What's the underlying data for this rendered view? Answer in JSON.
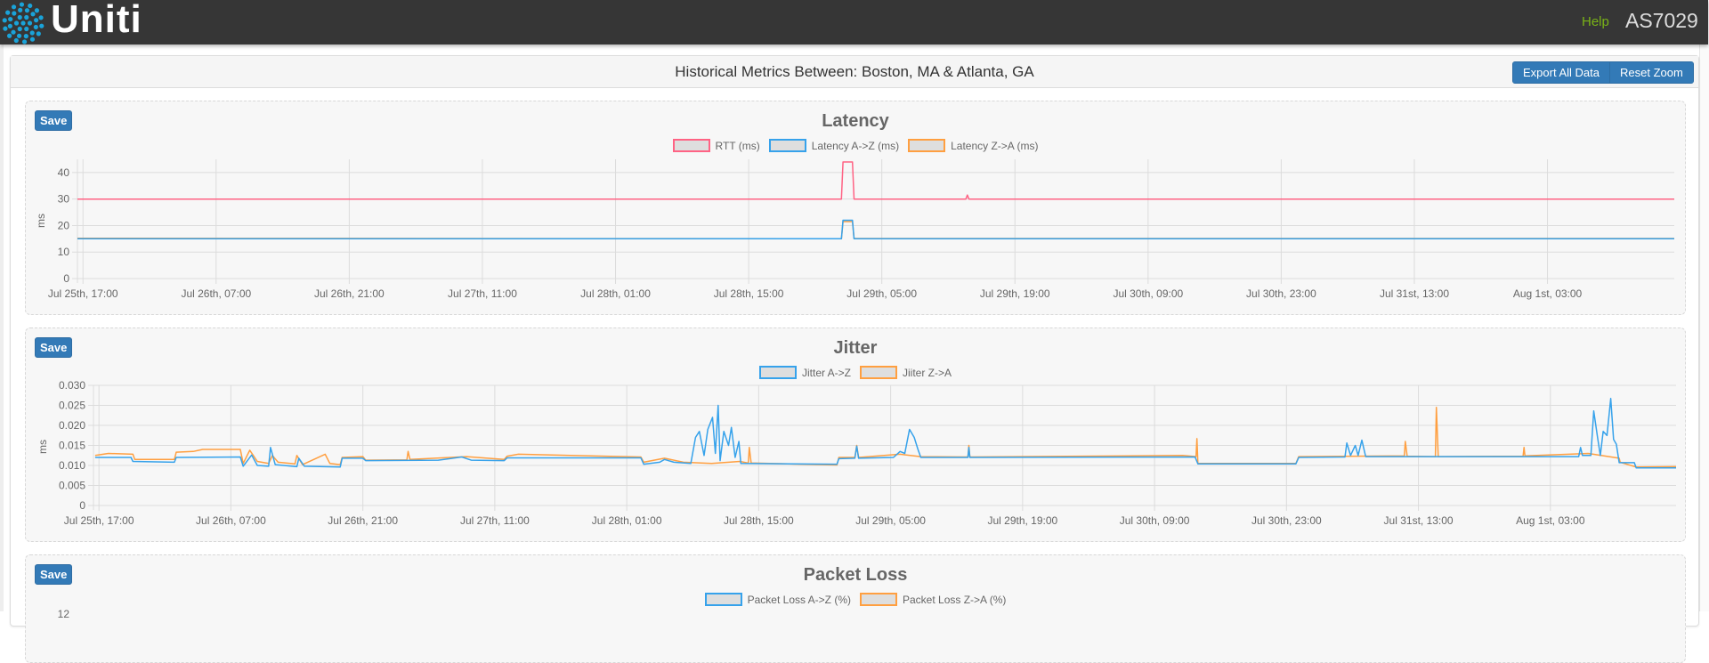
{
  "header": {
    "brand": "Uniti",
    "help": "Help",
    "user": "AS7029",
    "logo_color": "#1aa3d9",
    "help_color": "#7ab317"
  },
  "panel": {
    "title": "Historical Metrics Between: Boston, MA & Atlanta, GA",
    "export_label": "Export All Data",
    "reset_zoom_label": "Reset Zoom"
  },
  "charts": [
    {
      "save_label": "Save",
      "title": "Latency"
    },
    {
      "save_label": "Save",
      "title": "Jitter"
    },
    {
      "save_label": "Save",
      "title": "Packet Loss"
    }
  ],
  "chart_data": [
    {
      "type": "line",
      "title": "Latency",
      "ylabel": "ms",
      "ylim": [
        0,
        45
      ],
      "xlim": [
        "Jul 25 16:25",
        "Aug 1 16:20"
      ],
      "grid": true,
      "legend_position": "top",
      "yticks": [
        "0",
        "10",
        "20",
        "30",
        "40"
      ],
      "xticks": [
        {
          "t": "Jul 25 17:00",
          "label": "Jul 25th, 17:00"
        },
        {
          "t": "Jul 26 07:00",
          "label": "Jul 26th, 07:00"
        },
        {
          "t": "Jul 26 21:00",
          "label": "Jul 26th, 21:00"
        },
        {
          "t": "Jul 27 11:00",
          "label": "Jul 27th, 11:00"
        },
        {
          "t": "Jul 28 01:00",
          "label": "Jul 28th, 01:00"
        },
        {
          "t": "Jul 28 15:00",
          "label": "Jul 28th, 15:00"
        },
        {
          "t": "Jul 29 05:00",
          "label": "Jul 29th, 05:00"
        },
        {
          "t": "Jul 29 19:00",
          "label": "Jul 29th, 19:00"
        },
        {
          "t": "Jul 30 09:00",
          "label": "Jul 30th, 09:00"
        },
        {
          "t": "Jul 30 23:00",
          "label": "Jul 30th, 23:00"
        },
        {
          "t": "Jul 31 13:00",
          "label": "Jul 31st, 13:00"
        },
        {
          "t": "Aug 1 03:00",
          "label": "Aug 1st, 03:00"
        }
      ],
      "series": [
        {
          "name": "RTT (ms)",
          "color": "#ff6384",
          "points": [
            [
              "Jul 25 16:25",
              30
            ],
            [
              "Jul 29 00:45",
              30
            ],
            [
              "Jul 29 00:55",
              44
            ],
            [
              "Jul 29 01:55",
              44
            ],
            [
              "Jul 29 02:05",
              30
            ],
            [
              "Jul 29 13:50",
              30
            ],
            [
              "Jul 29 14:00",
              31.5
            ],
            [
              "Jul 29 14:10",
              30
            ],
            [
              "Aug 1 16:20",
              30
            ]
          ]
        },
        {
          "name": "Latency A->Z (ms)",
          "color": "#36a2eb",
          "points": [
            [
              "Jul 25 16:25",
              15
            ],
            [
              "Jul 29 00:45",
              15
            ],
            [
              "Jul 29 00:55",
              22
            ],
            [
              "Jul 29 01:55",
              22
            ],
            [
              "Jul 29 02:05",
              15
            ],
            [
              "Aug 1 16:20",
              15
            ]
          ]
        },
        {
          "name": "Latency Z->A (ms)",
          "color": "#ff9f40",
          "points": [
            [
              "Jul 25 16:25",
              15.2
            ],
            [
              "Jul 29 00:45",
              15
            ],
            [
              "Jul 29 00:55",
              21.5
            ],
            [
              "Jul 29 01:55",
              21.5
            ],
            [
              "Jul 29 02:05",
              15.1
            ],
            [
              "Aug 1 16:20",
              15.1
            ]
          ]
        }
      ]
    },
    {
      "type": "line",
      "title": "Jitter",
      "ylabel": "ms",
      "ylim": [
        0,
        0.03
      ],
      "xlim": [
        "Jul 25 16:25",
        "Aug 1 16:20"
      ],
      "grid": true,
      "legend_position": "top",
      "yticks": [
        "0",
        "0.005",
        "0.010",
        "0.015",
        "0.020",
        "0.025",
        "0.030"
      ],
      "xticks": [
        {
          "t": "Jul 25 17:00",
          "label": "Jul 25th, 17:00"
        },
        {
          "t": "Jul 26 07:00",
          "label": "Jul 26th, 07:00"
        },
        {
          "t": "Jul 26 21:00",
          "label": "Jul 26th, 21:00"
        },
        {
          "t": "Jul 27 11:00",
          "label": "Jul 27th, 11:00"
        },
        {
          "t": "Jul 28 01:00",
          "label": "Jul 28th, 01:00"
        },
        {
          "t": "Jul 28 15:00",
          "label": "Jul 28th, 15:00"
        },
        {
          "t": "Jul 29 05:00",
          "label": "Jul 29th, 05:00"
        },
        {
          "t": "Jul 29 19:00",
          "label": "Jul 29th, 19:00"
        },
        {
          "t": "Jul 30 09:00",
          "label": "Jul 30th, 09:00"
        },
        {
          "t": "Jul 30 23:00",
          "label": "Jul 30th, 23:00"
        },
        {
          "t": "Jul 31 13:00",
          "label": "Jul 31st, 13:00"
        },
        {
          "t": "Aug 1 03:00",
          "label": "Aug 1st, 03:00"
        }
      ],
      "series": [
        {
          "name": "Jitter A->Z",
          "color": "#36a2eb",
          "points": [
            [
              "Jul 25 16:36",
              0.012
            ],
            [
              "Jul 25 20:24",
              0.012
            ],
            [
              "Jul 25 20:36",
              0.011
            ],
            [
              "Jul 26 01:00",
              0.0108
            ],
            [
              "Jul 26 01:12",
              0.012
            ],
            [
              "Jul 26 08:00",
              0.0121
            ],
            [
              "Jul 26 08:18",
              0.0098
            ],
            [
              "Jul 26 09:12",
              0.0126
            ],
            [
              "Jul 26 09:48",
              0.01
            ],
            [
              "Jul 26 11:00",
              0.0098
            ],
            [
              "Jul 26 11:12",
              0.0145
            ],
            [
              "Jul 26 11:42",
              0.0102
            ],
            [
              "Jul 26 14:00",
              0.0097
            ],
            [
              "Jul 26 14:12",
              0.0118
            ],
            [
              "Jul 26 14:48",
              0.0098
            ],
            [
              "Jul 26 18:36",
              0.0096
            ],
            [
              "Jul 26 18:48",
              0.0118
            ],
            [
              "Jul 26 21:00",
              0.0118
            ],
            [
              "Jul 26 21:18",
              0.0112
            ],
            [
              "Jul 27 05:00",
              0.0113
            ],
            [
              "Jul 27 07:30",
              0.0121
            ],
            [
              "Jul 27 08:30",
              0.0113
            ],
            [
              "Jul 27 12:00",
              0.0112
            ],
            [
              "Jul 27 12:18",
              0.0119
            ],
            [
              "Jul 28 02:30",
              0.0119
            ],
            [
              "Jul 28 02:48",
              0.0103
            ],
            [
              "Jul 28 04:30",
              0.0108
            ],
            [
              "Jul 28 05:00",
              0.0115
            ],
            [
              "Jul 28 06:00",
              0.0108
            ],
            [
              "Jul 28 07:48",
              0.0105
            ],
            [
              "Jul 28 08:18",
              0.017
            ],
            [
              "Jul 28 08:42",
              0.0185
            ],
            [
              "Jul 28 09:12",
              0.0125
            ],
            [
              "Jul 28 09:36",
              0.019
            ],
            [
              "Jul 28 10:06",
              0.022
            ],
            [
              "Jul 28 10:24",
              0.013
            ],
            [
              "Jul 28 10:42",
              0.025
            ],
            [
              "Jul 28 10:54",
              0.0112
            ],
            [
              "Jul 28 11:18",
              0.0185
            ],
            [
              "Jul 28 11:48",
              0.015
            ],
            [
              "Jul 28 12:06",
              0.0195
            ],
            [
              "Jul 28 12:30",
              0.012
            ],
            [
              "Jul 28 12:54",
              0.016
            ],
            [
              "Jul 28 13:06",
              0.0105
            ],
            [
              "Jul 28 23:18",
              0.0103
            ],
            [
              "Jul 28 23:30",
              0.0117
            ],
            [
              "Jul 29 01:12",
              0.0118
            ],
            [
              "Jul 29 01:24",
              0.0148
            ],
            [
              "Jul 29 01:36",
              0.0118
            ],
            [
              "Jul 29 05:18",
              0.012
            ],
            [
              "Jul 29 06:00",
              0.0135
            ],
            [
              "Jul 29 06:30",
              0.013
            ],
            [
              "Jul 29 07:00",
              0.019
            ],
            [
              "Jul 29 07:30",
              0.017
            ],
            [
              "Jul 29 07:54",
              0.014
            ],
            [
              "Jul 29 08:12",
              0.012
            ],
            [
              "Jul 29 13:12",
              0.012
            ],
            [
              "Jul 29 13:18",
              0.0145
            ],
            [
              "Jul 29 13:24",
              0.012
            ],
            [
              "Jul 30 13:18",
              0.0121
            ],
            [
              "Jul 30 13:36",
              0.0104
            ],
            [
              "Jul 31 00:00",
              0.0104
            ],
            [
              "Jul 31 00:18",
              0.012
            ],
            [
              "Jul 31 05:12",
              0.0121
            ],
            [
              "Jul 31 05:24",
              0.0156
            ],
            [
              "Jul 31 05:48",
              0.0125
            ],
            [
              "Jul 31 06:18",
              0.015
            ],
            [
              "Jul 31 06:36",
              0.0125
            ],
            [
              "Jul 31 07:00",
              0.0163
            ],
            [
              "Jul 31 07:24",
              0.0122
            ],
            [
              "Aug 1 06:00",
              0.0122
            ],
            [
              "Aug 1 06:12",
              0.0145
            ],
            [
              "Aug 1 06:24",
              0.0125
            ],
            [
              "Aug 1 07:18",
              0.0125
            ],
            [
              "Aug 1 07:36",
              0.0236
            ],
            [
              "Aug 1 08:00",
              0.017
            ],
            [
              "Aug 1 08:18",
              0.0125
            ],
            [
              "Aug 1 08:36",
              0.0185
            ],
            [
              "Aug 1 09:00",
              0.0175
            ],
            [
              "Aug 1 09:24",
              0.0267
            ],
            [
              "Aug 1 09:42",
              0.0165
            ],
            [
              "Aug 1 10:00",
              0.0153
            ],
            [
              "Aug 1 10:18",
              0.0107
            ],
            [
              "Aug 1 11:54",
              0.0107
            ],
            [
              "Aug 1 12:06",
              0.0094
            ],
            [
              "Aug 1 16:20",
              0.0094
            ]
          ]
        },
        {
          "name": "Jiiter Z->A",
          "color": "#ff9f40",
          "points": [
            [
              "Jul 25 16:36",
              0.0125
            ],
            [
              "Jul 25 18:00",
              0.013
            ],
            [
              "Jul 25 20:36",
              0.0128
            ],
            [
              "Jul 25 20:48",
              0.0115
            ],
            [
              "Jul 26 01:00",
              0.0115
            ],
            [
              "Jul 26 01:12",
              0.0133
            ],
            [
              "Jul 26 03:00",
              0.0135
            ],
            [
              "Jul 26 04:00",
              0.014
            ],
            [
              "Jul 26 08:00",
              0.014
            ],
            [
              "Jul 26 08:18",
              0.0105
            ],
            [
              "Jul 26 09:00",
              0.0138
            ],
            [
              "Jul 26 09:48",
              0.011
            ],
            [
              "Jul 26 11:00",
              0.0105
            ],
            [
              "Jul 26 11:24",
              0.0125
            ],
            [
              "Jul 26 12:00",
              0.0108
            ],
            [
              "Jul 26 13:48",
              0.0104
            ],
            [
              "Jul 26 14:00",
              0.0125
            ],
            [
              "Jul 26 14:36",
              0.0102
            ],
            [
              "Jul 26 17:00",
              0.0128
            ],
            [
              "Jul 26 17:30",
              0.0105
            ],
            [
              "Jul 26 18:36",
              0.0102
            ],
            [
              "Jul 26 18:48",
              0.012
            ],
            [
              "Jul 26 21:00",
              0.0122
            ],
            [
              "Jul 26 21:18",
              0.0113
            ],
            [
              "Jul 27 01:40",
              0.0114
            ],
            [
              "Jul 27 01:48",
              0.0135
            ],
            [
              "Jul 27 02:00",
              0.0115
            ],
            [
              "Jul 27 08:00",
              0.0122
            ],
            [
              "Jul 27 12:00",
              0.0115
            ],
            [
              "Jul 27 12:18",
              0.0123
            ],
            [
              "Jul 27 13:30",
              0.0128
            ],
            [
              "Jul 28 02:30",
              0.0121
            ],
            [
              "Jul 28 02:48",
              0.0108
            ],
            [
              "Jul 28 05:00",
              0.0118
            ],
            [
              "Jul 28 07:00",
              0.0108
            ],
            [
              "Jul 28 10:00",
              0.0105
            ],
            [
              "Jul 28 13:00",
              0.011
            ],
            [
              "Jul 28 13:54",
              0.0106
            ],
            [
              "Jul 28 14:00",
              0.0145
            ],
            [
              "Jul 28 14:12",
              0.0106
            ],
            [
              "Jul 28 23:18",
              0.0101
            ],
            [
              "Jul 28 23:30",
              0.012
            ],
            [
              "Jul 29 01:12",
              0.012
            ],
            [
              "Jul 29 01:24",
              0.015
            ],
            [
              "Jul 29 01:36",
              0.012
            ],
            [
              "Jul 29 06:00",
              0.0128
            ],
            [
              "Jul 29 08:12",
              0.0122
            ],
            [
              "Jul 29 13:12",
              0.0121
            ],
            [
              "Jul 29 13:18",
              0.015
            ],
            [
              "Jul 29 13:24",
              0.0121
            ],
            [
              "Jul 30 12:00",
              0.0125
            ],
            [
              "Jul 30 13:24",
              0.0122
            ],
            [
              "Jul 30 13:30",
              0.0167
            ],
            [
              "Jul 30 13:36",
              0.0105
            ],
            [
              "Jul 31 00:00",
              0.0105
            ],
            [
              "Jul 31 00:18",
              0.0122
            ],
            [
              "Jul 31 11:30",
              0.0124
            ],
            [
              "Jul 31 11:36",
              0.016
            ],
            [
              "Jul 31 11:48",
              0.0123
            ],
            [
              "Jul 31 14:48",
              0.0122
            ],
            [
              "Jul 31 14:54",
              0.0245
            ],
            [
              "Jul 31 15:06",
              0.0122
            ],
            [
              "Aug 1 00:06",
              0.0123
            ],
            [
              "Aug 1 00:12",
              0.0145
            ],
            [
              "Aug 1 00:18",
              0.0124
            ],
            [
              "Aug 1 05:00",
              0.0128
            ],
            [
              "Aug 1 07:00",
              0.013
            ],
            [
              "Aug 1 10:18",
              0.0118
            ],
            [
              "Aug 1 10:24",
              0.0108
            ],
            [
              "Aug 1 12:06",
              0.0096
            ],
            [
              "Aug 1 16:20",
              0.0097
            ]
          ]
        }
      ]
    },
    {
      "type": "line",
      "title": "Packet Loss",
      "yticks": [
        "12"
      ],
      "legend_position": "top",
      "series": [
        {
          "name": "Packet Loss A->Z (%)",
          "color": "#36a2eb",
          "points": []
        },
        {
          "name": "Packet Loss Z->A (%)",
          "color": "#ff9f40",
          "points": []
        }
      ]
    }
  ]
}
